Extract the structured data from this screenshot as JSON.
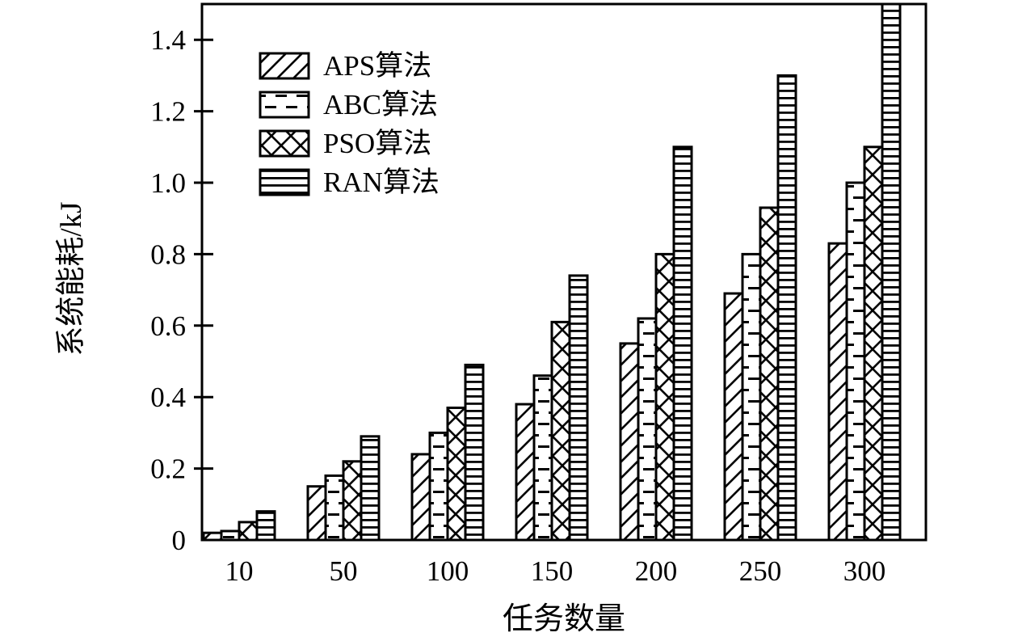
{
  "chart_data": {
    "type": "bar",
    "title": "",
    "xlabel": "任务数量",
    "ylabel": "系统能耗/kJ",
    "categories": [
      "10",
      "50",
      "100",
      "150",
      "200",
      "250",
      "300"
    ],
    "series": [
      {
        "name": "APS算法",
        "pattern": "diagonal-hatch",
        "values": [
          0.02,
          0.15,
          0.24,
          0.38,
          0.55,
          0.69,
          0.83
        ]
      },
      {
        "name": "ABC算法",
        "pattern": "horizontal-dashes",
        "values": [
          0.025,
          0.18,
          0.3,
          0.46,
          0.62,
          0.8,
          1.0
        ]
      },
      {
        "name": "PSO算法",
        "pattern": "crosshatch",
        "values": [
          0.05,
          0.22,
          0.37,
          0.61,
          0.8,
          0.93,
          1.1
        ]
      },
      {
        "name": "RAN算法",
        "pattern": "horizontal-lines",
        "values": [
          0.08,
          0.29,
          0.49,
          0.74,
          1.1,
          1.3,
          1.5
        ]
      }
    ],
    "ylim": [
      0,
      1.5
    ],
    "yticks": [
      "0",
      "0.2",
      "0.4",
      "0.6",
      "0.8",
      "1.0",
      "1.2",
      "1.4"
    ],
    "ytick_values": [
      0,
      0.2,
      0.4,
      0.6,
      0.8,
      1.0,
      1.2,
      1.4
    ],
    "legend_position": "top-left-inside",
    "grid": false,
    "note": "RAN bar at category 300 reaches the top axis frame (clipped at 1.5)",
    "colors": {
      "foreground": "#000000",
      "background": "#ffffff"
    }
  }
}
